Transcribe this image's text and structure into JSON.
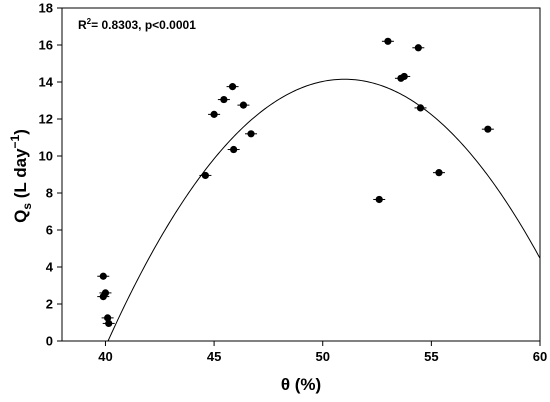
{
  "chart_data": {
    "type": "scatter",
    "xlabel": "θ (%)",
    "ylabel": {
      "main": "Q",
      "main_sub": "s",
      "unit_open": " (L day",
      "unit_sup": "−1",
      "unit_close": ")"
    },
    "annotation": {
      "r_prefix": "R",
      "r_sup": "2",
      "r_rest": "= 0.8303, p<0.0001"
    },
    "xlim": [
      38,
      60
    ],
    "ylim": [
      0,
      18
    ],
    "xticks": [
      40,
      45,
      50,
      55,
      60
    ],
    "yticks": [
      0,
      2,
      4,
      6,
      8,
      10,
      12,
      14,
      16,
      18
    ],
    "grid": false,
    "points": [
      {
        "x": 39.9,
        "y": 3.5
      },
      {
        "x": 40.0,
        "y": 2.6
      },
      {
        "x": 39.9,
        "y": 2.4
      },
      {
        "x": 40.1,
        "y": 1.25
      },
      {
        "x": 40.15,
        "y": 0.95
      },
      {
        "x": 44.6,
        "y": 8.95
      },
      {
        "x": 45.0,
        "y": 12.25
      },
      {
        "x": 45.45,
        "y": 13.05
      },
      {
        "x": 45.85,
        "y": 13.75
      },
      {
        "x": 45.9,
        "y": 10.35
      },
      {
        "x": 46.35,
        "y": 12.75
      },
      {
        "x": 46.7,
        "y": 11.2
      },
      {
        "x": 52.6,
        "y": 7.65
      },
      {
        "x": 53.0,
        "y": 16.2
      },
      {
        "x": 53.6,
        "y": 14.2
      },
      {
        "x": 53.75,
        "y": 14.3
      },
      {
        "x": 54.4,
        "y": 15.85
      },
      {
        "x": 54.5,
        "y": 12.6
      },
      {
        "x": 55.35,
        "y": 9.1
      },
      {
        "x": 57.6,
        "y": 11.45
      }
    ],
    "fit_curve": {
      "type": "quadratic",
      "vertex_x": 51.0,
      "vertex_y": 14.15,
      "a": -0.1195
    },
    "marker_color": "#000000",
    "line_color": "#000000"
  }
}
